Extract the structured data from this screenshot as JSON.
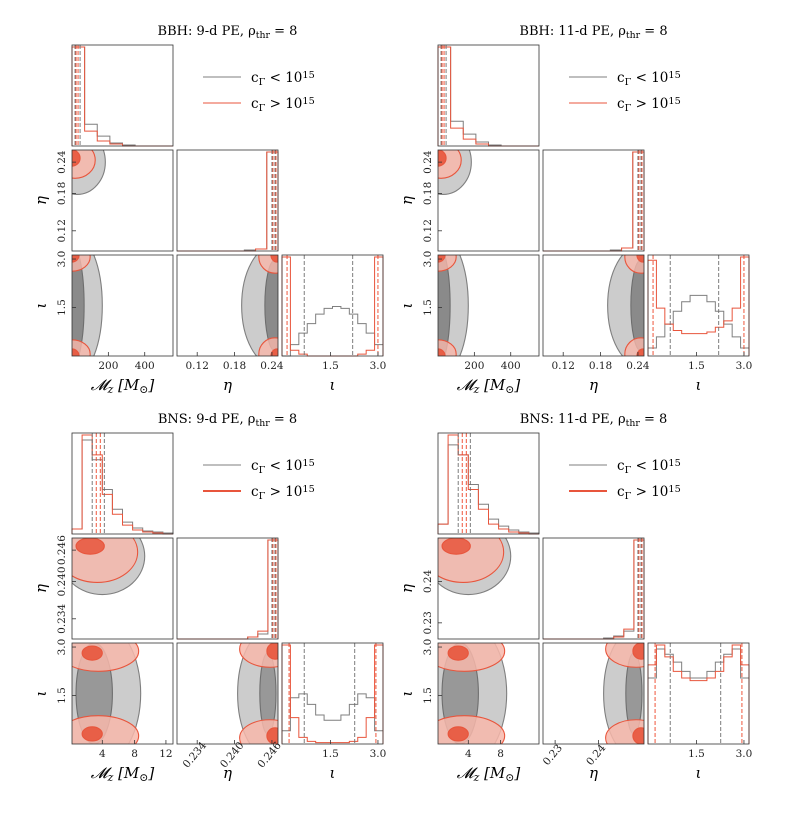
{
  "colors": {
    "gray": "#7f7f7f",
    "gray_fill": "#bfbfbf",
    "gray_dark": "#6e6e6e",
    "red": "#e8553c",
    "red_fill": "#f7b7aa",
    "red_dark": "#ec4326",
    "frame": "#333333"
  },
  "chart_data": [
    {
      "type": "corner",
      "title": "BBH: 9-d PE, ρ_thr = 8",
      "xlabels": [
        "𝓜_z [M_⊙]",
        "η",
        "ι"
      ],
      "ylabels": [
        "",
        "η",
        "ι"
      ],
      "legend": [
        "c_Γ < 10^15",
        "c_Γ > 10^15"
      ],
      "ranges": {
        "Mc": [
          0,
          560
        ],
        "eta": [
          0.06,
          0.25
        ],
        "iota": [
          0,
          3.14
        ]
      },
      "ticks": {
        "Mc": [
          "200",
          "400"
        ],
        "eta_y": [
          "0.24",
          "0.18",
          "0.12"
        ],
        "eta_x": [
          "0.12",
          "0.18",
          "0.24"
        ],
        "iota_y": [
          "3.0",
          "1.5"
        ],
        "iota_x": [
          "1.5",
          "3.0"
        ]
      },
      "series": [
        {
          "name": "c_Γ < 10^15",
          "Mc_hist": [
            1.0,
            0.22,
            0.1,
            0.03,
            0.01,
            0,
            0,
            0
          ],
          "eta_hist": [
            0,
            0,
            0,
            0,
            0,
            0,
            0.01,
            0.02,
            1.0
          ],
          "iota_hist": [
            0,
            0.06,
            0.12,
            0.17,
            0.22,
            0.25,
            0.26,
            0.25,
            0.22,
            0.17,
            0.12,
            0.06
          ]
        },
        {
          "name": "c_Γ > 10^15",
          "Mc_hist": [
            1.0,
            0.15,
            0.05,
            0.02,
            0,
            0,
            0,
            0
          ],
          "eta_hist": [
            0,
            0,
            0,
            0,
            0,
            0,
            0,
            0.02,
            1.0
          ],
          "iota_hist": [
            0.52,
            0.03,
            0.01,
            0,
            0,
            0,
            0,
            0,
            0,
            0.01,
            0.03,
            0.52
          ]
        }
      ]
    },
    {
      "type": "corner",
      "title": "BBH: 11-d PE, ρ_thr = 8",
      "xlabels": [
        "𝓜_z [M_⊙]",
        "η",
        "ι"
      ],
      "ylabels": [
        "",
        "η",
        "ι"
      ],
      "legend": [
        "c_Γ < 10^15",
        "c_Γ > 10^15"
      ],
      "ranges": {
        "Mc": [
          0,
          560
        ],
        "eta": [
          0.06,
          0.25
        ],
        "iota": [
          0,
          3.14
        ]
      },
      "ticks": {
        "Mc": [
          "200",
          "400"
        ],
        "eta_y": [
          "0.24",
          "0.18",
          "0.12"
        ],
        "eta_x": [
          "0.12",
          "0.18",
          "0.24"
        ],
        "iota_y": [
          "3.0",
          "1.5"
        ],
        "iota_x": [
          "1.5",
          "3.0"
        ]
      },
      "series": [
        {
          "name": "c_Γ < 10^15",
          "Mc_hist": [
            1.0,
            0.25,
            0.12,
            0.04,
            0.01,
            0,
            0,
            0
          ],
          "eta_hist": [
            0,
            0,
            0,
            0,
            0,
            0,
            0.01,
            0.03,
            1.0
          ],
          "iota_hist": [
            0.05,
            0.12,
            0.2,
            0.28,
            0.34,
            0.38,
            0.38,
            0.34,
            0.28,
            0.2,
            0.12,
            0.05
          ]
        },
        {
          "name": "c_Γ > 10^15",
          "Mc_hist": [
            1.0,
            0.18,
            0.07,
            0.02,
            0,
            0,
            0,
            0
          ],
          "eta_hist": [
            0,
            0,
            0,
            0,
            0,
            0,
            0,
            0.03,
            1.0
          ],
          "iota_hist": [
            0.6,
            0.3,
            0.2,
            0.16,
            0.14,
            0.14,
            0.14,
            0.15,
            0.18,
            0.22,
            0.3,
            0.62
          ]
        }
      ]
    },
    {
      "type": "corner",
      "title": "BNS: 9-d PE, ρ_thr = 8",
      "xlabels": [
        "𝓜_z [M_⊙]",
        "η",
        "ι"
      ],
      "ylabels": [
        "",
        "η",
        "ι"
      ],
      "legend": [
        "c_Γ < 10^15",
        "c_Γ > 10^15"
      ],
      "ranges": {
        "Mc": [
          0,
          13
        ],
        "eta": [
          0.232,
          0.25
        ],
        "iota": [
          0,
          3.14
        ]
      },
      "ticks": {
        "Mc": [
          "4",
          "8",
          "12"
        ],
        "eta_y": [
          "0.246",
          "0.240",
          "0.234"
        ],
        "eta_x": [
          "0.234",
          "0.240",
          "0.246"
        ],
        "iota_y": [
          "3.0",
          "1.5"
        ],
        "iota_x": [
          "1.5",
          "3.0"
        ]
      },
      "series": [
        {
          "name": "c_Γ < 10^15",
          "Mc_hist": [
            0.05,
            0.95,
            0.75,
            0.45,
            0.25,
            0.12,
            0.06,
            0.03,
            0.02,
            0.01
          ],
          "eta_hist": [
            0,
            0,
            0,
            0,
            0,
            0,
            0,
            0.02,
            0.05,
            1.0
          ],
          "iota_hist": [
            0.1,
            0.35,
            0.38,
            0.3,
            0.22,
            0.18,
            0.18,
            0.22,
            0.3,
            0.38,
            0.35,
            0.1
          ]
        },
        {
          "name": "c_Γ > 10^15",
          "Mc_hist": [
            0.05,
            1.0,
            0.8,
            0.4,
            0.2,
            0.09,
            0.04,
            0.02,
            0.01,
            0
          ],
          "eta_hist": [
            0,
            0,
            0,
            0,
            0,
            0,
            0,
            0.02,
            0.08,
            1.0
          ],
          "iota_hist": [
            0.75,
            0.2,
            0.05,
            0.02,
            0.01,
            0.01,
            0.01,
            0.01,
            0.02,
            0.05,
            0.2,
            0.75
          ]
        }
      ]
    },
    {
      "type": "corner",
      "title": "BNS: 11-d PE, ρ_thr = 8",
      "xlabels": [
        "𝓜_z [M_⊙]",
        "η",
        "ι"
      ],
      "ylabels": [
        "",
        "η",
        "ι"
      ],
      "legend": [
        "c_Γ < 10^15",
        "c_Γ > 10^15"
      ],
      "ranges": {
        "Mc": [
          0,
          13
        ],
        "eta": [
          0.225,
          0.251
        ],
        "iota": [
          0,
          3.14
        ]
      },
      "ticks": {
        "Mc": [
          "4",
          "8"
        ],
        "eta_y": [
          "0.24",
          "0.23"
        ],
        "eta_x": [
          "0.23",
          "0.24"
        ],
        "iota_y": [
          "3.0",
          "1.5"
        ],
        "iota_x": [
          "1.5",
          "3.0"
        ]
      },
      "series": [
        {
          "name": "c_Γ < 10^15",
          "Mc_hist": [
            0.1,
            0.9,
            0.8,
            0.5,
            0.3,
            0.15,
            0.08,
            0.04,
            0.02,
            0.01
          ],
          "eta_hist": [
            0,
            0,
            0,
            0,
            0,
            0,
            0.01,
            0.03,
            0.08,
            1.0
          ],
          "iota_hist": [
            0.5,
            0.72,
            0.68,
            0.62,
            0.55,
            0.5,
            0.5,
            0.55,
            0.62,
            0.68,
            0.72,
            0.5
          ]
        },
        {
          "name": "c_Γ > 10^15",
          "Mc_hist": [
            0.1,
            1.0,
            0.8,
            0.45,
            0.25,
            0.1,
            0.05,
            0.02,
            0.01,
            0
          ],
          "eta_hist": [
            0,
            0,
            0,
            0,
            0,
            0,
            0,
            0.02,
            0.1,
            1.0
          ],
          "iota_hist": [
            0.6,
            0.75,
            0.66,
            0.55,
            0.5,
            0.48,
            0.48,
            0.5,
            0.55,
            0.66,
            0.75,
            0.6
          ]
        }
      ]
    }
  ]
}
